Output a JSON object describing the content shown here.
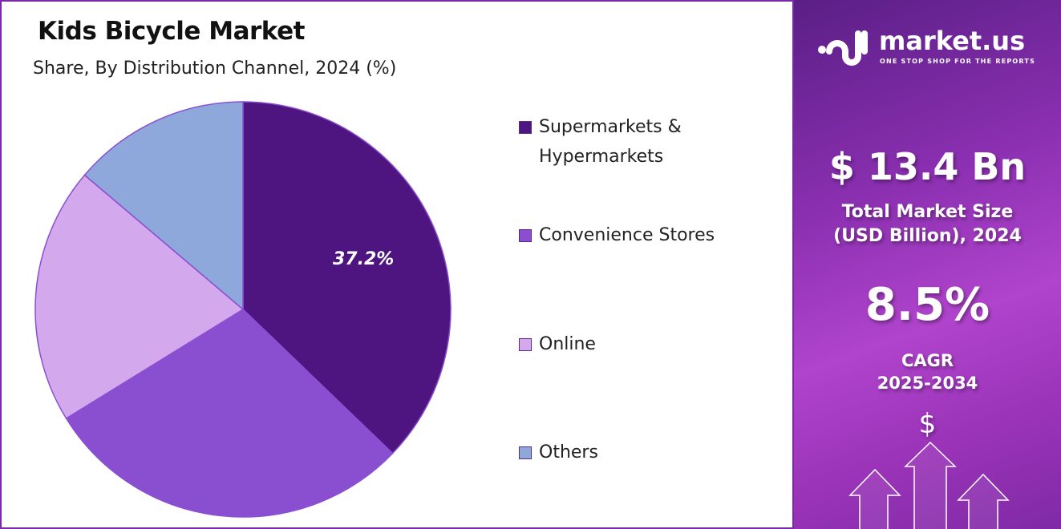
{
  "chart_data": {
    "type": "pie",
    "title": "Kids Bicycle Market",
    "subtitle": "Share, By Distribution Channel, 2024 (%)",
    "slices": [
      {
        "label": "Supermarkets & Hypermarkets",
        "value": 37.2,
        "color": "#4e1580",
        "data_label": "37.2%"
      },
      {
        "label": "Convenience Stores",
        "value": 29.0,
        "color": "#8a4fd0",
        "data_label": ""
      },
      {
        "label": "Online",
        "value": 20.0,
        "color": "#d4a8ec",
        "data_label": ""
      },
      {
        "label": "Others",
        "value": 13.8,
        "color": "#8fa8dc",
        "data_label": ""
      }
    ],
    "start_angle": "12 o'clock, clockwise",
    "legend_placement": "right"
  },
  "brand": {
    "name": "market.us",
    "tagline": "ONE STOP SHOP FOR THE REPORTS"
  },
  "stats": {
    "market_size": "$ 13.4 Bn",
    "market_size_label_1": "Total Market Size",
    "market_size_label_2": "(USD Billion), 2024",
    "cagr": "8.5%",
    "cagr_label_1": "CAGR",
    "cagr_label_2": "2025-2034",
    "dollar_symbol": "$"
  }
}
